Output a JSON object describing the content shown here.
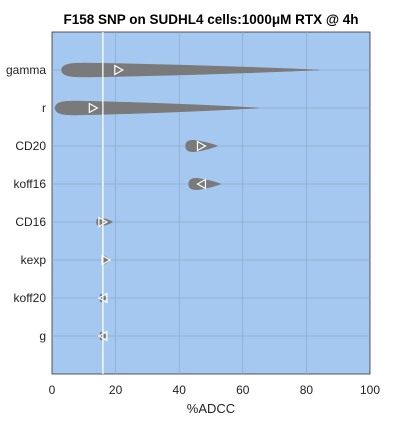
{
  "chart_data": {
    "type": "violin",
    "title": "F158 SNP on SUDHL4 cells:1000μM RTX @ 4h",
    "xlabel": "%ADCC",
    "ylabel": "",
    "xlim": [
      0,
      100
    ],
    "xticks": [
      "0",
      "20",
      "40",
      "60",
      "80",
      "100"
    ],
    "grid": true,
    "reference_line": 16,
    "categories": [
      "gamma",
      "r",
      "CD20",
      "koff16",
      "CD16",
      "kexp",
      "koff20",
      "g"
    ],
    "series": [
      {
        "label": "gamma",
        "min": 3,
        "max": 84,
        "median": 21,
        "direction": "right"
      },
      {
        "label": "r",
        "min": 1,
        "max": 65,
        "median": 13,
        "direction": "right"
      },
      {
        "label": "CD20",
        "min": 42,
        "max": 52,
        "median": 47,
        "direction": "right"
      },
      {
        "label": "koff16",
        "min": 43,
        "max": 53,
        "median": 47,
        "direction": "left"
      },
      {
        "label": "CD16",
        "min": 14,
        "max": 19,
        "median": 16,
        "direction": "right"
      },
      {
        "label": "kexp",
        "min": 16,
        "max": 18,
        "median": 17,
        "direction": "right"
      },
      {
        "label": "koff20",
        "min": 15,
        "max": 17,
        "median": 16,
        "direction": "left"
      },
      {
        "label": "g",
        "min": 15,
        "max": 17,
        "median": 16,
        "direction": "left"
      }
    ],
    "colors": {
      "background": "#a5c8f0",
      "violin": "#7a7a7a",
      "marker": "#ffffff",
      "reference_line": "#ffffff",
      "grid": "#8ea9cc"
    }
  }
}
